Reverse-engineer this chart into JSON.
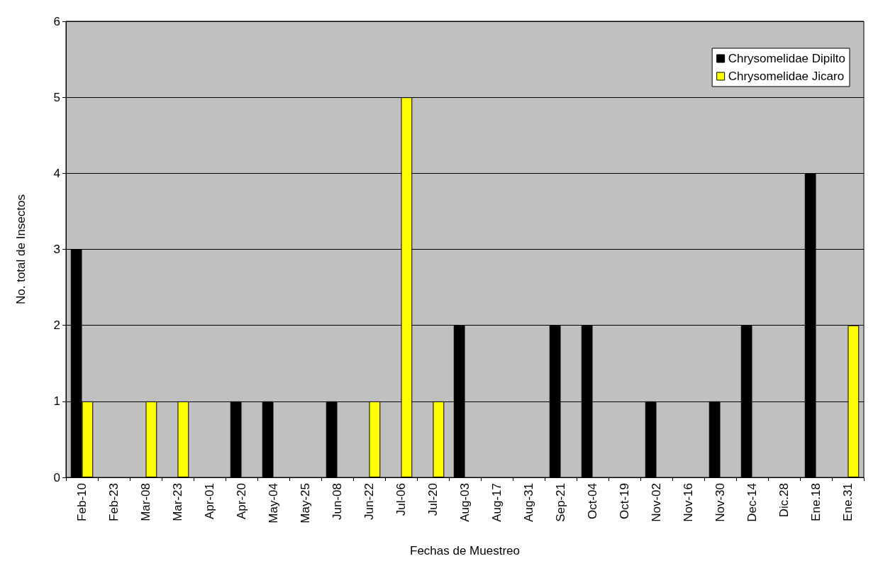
{
  "chart_data": {
    "type": "bar",
    "xlabel": "Fechas de Muestreo",
    "ylabel": "No. total de Insectos",
    "categories": [
      "Feb-10",
      "Feb-23",
      "Mar-08",
      "Mar-23",
      "Apr-01",
      "Apr-20",
      "May-04",
      "May-25",
      "Jun-08",
      "Jun-22",
      "Jul-06",
      "Jul-20",
      "Aug-03",
      "Aug-17",
      "Aug-31",
      "Sep-21",
      "Oct-04",
      "Oct-19",
      "Nov-02",
      "Nov-16",
      "Nov-30",
      "Dec-14",
      "Dic.28",
      "Ene.18",
      "Ene.31"
    ],
    "series": [
      {
        "name": "Chrysomelidae Dipilto",
        "color": "#000000",
        "values": [
          3,
          0,
          0,
          0,
          0,
          1,
          1,
          0,
          1,
          0,
          0,
          0,
          2,
          0,
          0,
          2,
          2,
          0,
          1,
          0,
          1,
          2,
          0,
          4,
          0
        ]
      },
      {
        "name": "Chrysomelidae Jicaro",
        "color": "#ffff00",
        "values": [
          1,
          0,
          1,
          1,
          0,
          0,
          0,
          0,
          0,
          1,
          5,
          1,
          0,
          0,
          0,
          0,
          0,
          0,
          0,
          0,
          0,
          0,
          0,
          0,
          2
        ]
      }
    ],
    "ylim": [
      0,
      6
    ],
    "yticks": [
      0,
      1,
      2,
      3,
      4,
      5,
      6
    ],
    "grid": "y",
    "legend": "top right"
  }
}
